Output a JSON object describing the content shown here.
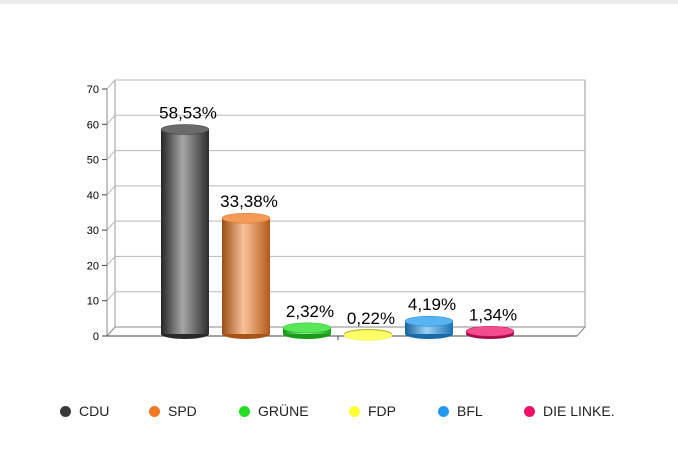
{
  "chart_data": {
    "type": "bar",
    "categories": [
      "CDU",
      "SPD",
      "GRÜNE",
      "FDP",
      "BFL",
      "DIE LINKE."
    ],
    "values": [
      58.53,
      33.38,
      2.32,
      0.22,
      4.19,
      1.34
    ],
    "data_labels": [
      "58,53%",
      "33,38%",
      "2,32%",
      "0,22%",
      "4,19%",
      "1,34%"
    ],
    "colors": [
      "#3a3a3a",
      "#f07820",
      "#22dd22",
      "#ffff33",
      "#2299ee",
      "#ee1166"
    ],
    "y_ticks": [
      "0",
      "10",
      "20",
      "30",
      "40",
      "50",
      "60",
      "70"
    ],
    "ylim": [
      0,
      70
    ],
    "grid": true,
    "legend_position": "bottom",
    "bar_style": "3d-cylinder"
  }
}
